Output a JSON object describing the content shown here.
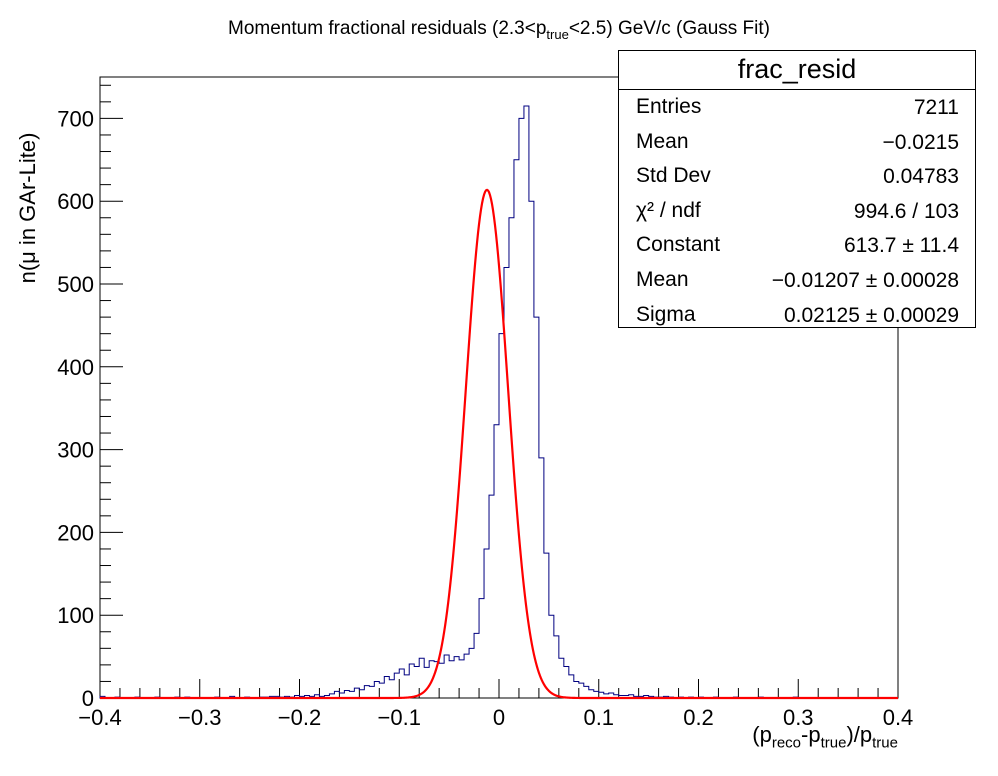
{
  "title": {
    "pre": "Momentum fractional residuals (2.3<p",
    "sub": "true",
    "post": "<2.5) GeV/c (Gauss Fit)"
  },
  "axes": {
    "xlabel": {
      "p1": "(p",
      "s1": "reco",
      "p2": "-p",
      "s2": "true",
      "p3": ")/p",
      "s3": "true"
    },
    "ylabel": "n(μ in GAr-Lite)"
  },
  "stats": {
    "name": "frac_resid",
    "rows": [
      {
        "key": "Entries",
        "value": "7211"
      },
      {
        "key": "Mean",
        "value": "−0.0215"
      },
      {
        "key": "Std Dev",
        "value": "0.04783"
      },
      {
        "key": "χ² / ndf",
        "value": "994.6 / 103"
      },
      {
        "key": "Constant",
        "value": "613.7 ± 11.4"
      },
      {
        "key": "Mean",
        "value": "−0.01207 ± 0.00028"
      },
      {
        "key": "Sigma",
        "value": "0.02125 ± 0.00029"
      }
    ]
  },
  "colors": {
    "histogram": "#000080",
    "fit": "#ff0000",
    "axis": "#000000"
  },
  "chart_data": {
    "type": "histogram",
    "title": "Momentum fractional residuals (2.3<p_true<2.5) GeV/c (Gauss Fit)",
    "xlabel": "(p_reco-p_true)/p_true",
    "ylabel": "n(μ in GAr-Lite)",
    "xlim": [
      -0.4,
      0.4
    ],
    "ylim": [
      0,
      750
    ],
    "xticks": [
      "−0.4",
      "−0.3",
      "−0.2",
      "−0.1",
      "0",
      "0.1",
      "0.2",
      "0.3",
      "0.4"
    ],
    "yticks": [
      "0",
      "100",
      "200",
      "300",
      "400",
      "500",
      "600",
      "700"
    ],
    "ytick_values": [
      0,
      100,
      200,
      300,
      400,
      500,
      600,
      700
    ],
    "xtick_values": [
      -0.4,
      -0.3,
      -0.2,
      -0.1,
      0,
      0.1,
      0.2,
      0.3,
      0.4
    ],
    "bin_width": 0.005,
    "bin_contents": [
      2,
      0,
      0,
      1,
      0,
      0,
      0,
      1,
      0,
      0,
      0,
      1,
      0,
      0,
      0,
      1,
      0,
      1,
      0,
      0,
      0,
      0,
      0,
      1,
      0,
      0,
      2,
      0,
      0,
      1,
      0,
      0,
      1,
      1,
      2,
      2,
      1,
      2,
      1,
      3,
      2,
      3,
      2,
      4,
      2,
      3,
      5,
      8,
      6,
      9,
      8,
      12,
      10,
      15,
      14,
      20,
      18,
      26,
      22,
      30,
      35,
      28,
      41,
      38,
      48,
      37,
      45,
      44,
      42,
      52,
      45,
      50,
      46,
      53,
      60,
      78,
      120,
      180,
      245,
      330,
      440,
      520,
      580,
      650,
      700,
      715,
      600,
      460,
      290,
      175,
      100,
      75,
      48,
      38,
      28,
      20,
      18,
      14,
      10,
      8,
      7,
      5,
      6,
      4,
      3,
      3,
      4,
      2,
      2,
      3,
      2,
      1,
      1,
      2,
      1,
      0,
      1,
      0,
      1,
      0,
      1,
      0,
      0,
      1,
      0,
      0,
      0,
      1,
      0,
      0,
      0,
      0,
      1,
      0,
      0,
      0,
      0,
      0,
      0,
      1,
      0,
      0,
      0,
      0,
      0,
      0,
      0,
      0,
      0,
      0,
      0,
      0,
      0,
      0,
      0,
      0,
      0,
      0,
      0,
      0
    ],
    "fit": {
      "function": "gaus",
      "constant": 613.7,
      "mean": -0.01207,
      "sigma": 0.02125
    },
    "grid": false,
    "legend": "top-right"
  }
}
